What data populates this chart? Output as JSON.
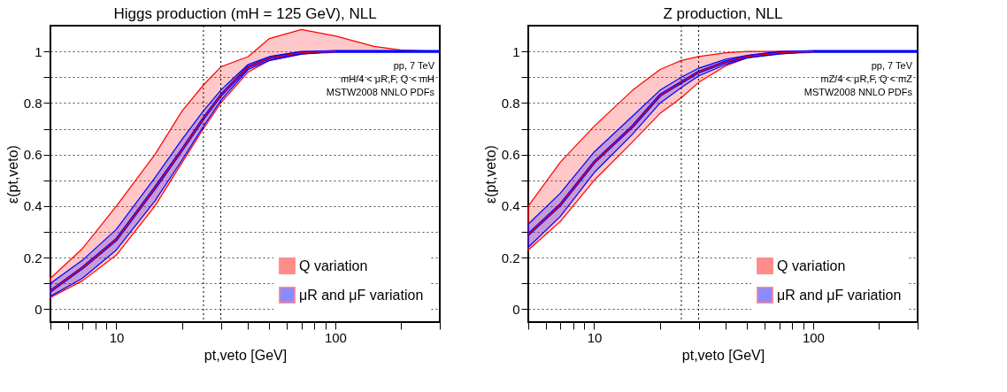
{
  "chart_data": [
    {
      "type": "line",
      "title": "Higgs production (mH = 125 GeV), NLL",
      "xlabel": "pt,veto [GeV]",
      "ylabel": "ε(pt,veto)",
      "annotations": [
        "pp, 7 TeV",
        "mH/4 < μR,F, Q < mH",
        "MSTW2008 NNLO PDFs"
      ],
      "x": [
        5,
        7,
        10,
        15,
        20,
        25,
        30,
        40,
        50,
        70,
        100,
        150,
        200,
        300
      ],
      "series": [
        {
          "name": "Q variation",
          "color": "#ff0000",
          "values": [
            0.07,
            0.16,
            0.27,
            0.47,
            0.62,
            0.74,
            0.83,
            0.94,
            0.975,
            0.995,
            1,
            null,
            null,
            null
          ],
          "lower": [
            0.045,
            0.11,
            0.21,
            0.4,
            0.57,
            0.7,
            0.8,
            0.92,
            0.965,
            0.99,
            1,
            1,
            1,
            1
          ],
          "upper": [
            0.12,
            0.235,
            0.4,
            0.6,
            0.77,
            0.87,
            0.94,
            0.98,
            1.05,
            1.085,
            1.06,
            1.02,
            1.005,
            1
          ]
        },
        {
          "name": "μR and μF variation",
          "color": "#0000ff",
          "values": [
            0.07,
            0.16,
            0.27,
            0.47,
            0.62,
            0.74,
            0.83,
            0.94,
            0.975,
            0.995,
            1,
            1,
            1,
            1
          ],
          "lower": [
            0.05,
            0.12,
            0.23,
            0.42,
            0.58,
            0.71,
            0.81,
            0.93,
            0.965,
            0.99,
            1,
            1,
            1,
            1
          ],
          "upper": [
            0.1,
            0.19,
            0.31,
            0.51,
            0.66,
            0.77,
            0.85,
            0.95,
            0.98,
            1,
            1,
            1,
            1,
            1
          ]
        }
      ],
      "xlim": [
        5,
        300
      ],
      "ylim": [
        -0.05,
        1.1
      ],
      "log": "x",
      "xticks": [
        {
          "value": 5,
          "label": null
        },
        {
          "value": 6,
          "label": null
        },
        {
          "value": 7,
          "label": null
        },
        {
          "value": 8,
          "label": null
        },
        {
          "value": 9,
          "label": null
        },
        10,
        {
          "value": 20,
          "label": null
        },
        {
          "value": 30,
          "label": null
        },
        {
          "value": 40,
          "label": null
        },
        {
          "value": 50,
          "label": null
        },
        {
          "value": 60,
          "label": null
        },
        {
          "value": 70,
          "label": null
        },
        {
          "value": 80,
          "label": null
        },
        {
          "value": 90,
          "label": null
        },
        100,
        {
          "value": 200,
          "label": null
        },
        {
          "value": 300,
          "label": null
        }
      ],
      "yticks": [
        0,
        {
          "value": 0.1,
          "label": null
        },
        0.2,
        {
          "value": 0.3,
          "label": null
        },
        0.4,
        {
          "value": 0.5,
          "label": null
        },
        0.6,
        {
          "value": 0.7,
          "label": null
        },
        0.8,
        {
          "value": 0.9,
          "label": null
        },
        1
      ],
      "ref_lines": [
        {
          "axis": "x",
          "value": 25,
          "color": "#000000",
          "line_style": "dotted"
        },
        {
          "axis": "x",
          "value": 30,
          "color": "#000000",
          "line_style": "dotted"
        }
      ],
      "grid": "y",
      "legend": "bottom right",
      "marker": "none",
      "line_style": "solid"
    },
    {
      "type": "line",
      "title": "Z production, NLL",
      "xlabel": "pt,veto [GeV]",
      "ylabel": "ε(pt,veto)",
      "annotations": [
        "pp, 7 TeV",
        "mZ/4 < μR,F, Q < mZ",
        "MSTW2008 NNLO PDFs"
      ],
      "x": [
        5,
        7,
        10,
        15,
        20,
        25,
        30,
        40,
        50,
        70,
        100,
        150,
        200,
        300
      ],
      "series": [
        {
          "name": "Q variation",
          "color": "#ff0000",
          "values": [
            0.29,
            0.405,
            0.57,
            0.71,
            0.83,
            0.88,
            0.92,
            0.96,
            0.98,
            0.995,
            1,
            null,
            null,
            null
          ],
          "lower": [
            0.23,
            0.34,
            0.5,
            0.65,
            0.76,
            0.82,
            0.88,
            0.945,
            0.975,
            0.995,
            1,
            1,
            1,
            1
          ],
          "upper": [
            0.4,
            0.57,
            0.71,
            0.85,
            0.93,
            0.965,
            0.98,
            0.995,
            1,
            1,
            1,
            1,
            1,
            1
          ]
        },
        {
          "name": "μR and μF variation",
          "color": "#0000ff",
          "values": [
            0.29,
            0.405,
            0.57,
            0.71,
            0.83,
            0.88,
            0.92,
            0.96,
            0.98,
            0.995,
            1,
            1,
            1,
            1
          ],
          "lower": [
            0.24,
            0.36,
            0.53,
            0.68,
            0.8,
            0.86,
            0.905,
            0.95,
            0.975,
            0.99,
            1,
            1,
            1,
            1
          ],
          "upper": [
            0.33,
            0.45,
            0.61,
            0.75,
            0.85,
            0.9,
            0.935,
            0.97,
            0.985,
            1,
            1,
            1,
            1,
            1
          ]
        }
      ],
      "xlim": [
        5,
        300
      ],
      "ylim": [
        -0.05,
        1.1
      ],
      "log": "x",
      "xticks": [
        {
          "value": 5,
          "label": null
        },
        {
          "value": 6,
          "label": null
        },
        {
          "value": 7,
          "label": null
        },
        {
          "value": 8,
          "label": null
        },
        {
          "value": 9,
          "label": null
        },
        10,
        {
          "value": 20,
          "label": null
        },
        {
          "value": 30,
          "label": null
        },
        {
          "value": 40,
          "label": null
        },
        {
          "value": 50,
          "label": null
        },
        {
          "value": 60,
          "label": null
        },
        {
          "value": 70,
          "label": null
        },
        {
          "value": 80,
          "label": null
        },
        {
          "value": 90,
          "label": null
        },
        100,
        {
          "value": 200,
          "label": null
        },
        {
          "value": 300,
          "label": null
        }
      ],
      "yticks": [
        0,
        {
          "value": 0.1,
          "label": null
        },
        0.2,
        {
          "value": 0.3,
          "label": null
        },
        0.4,
        {
          "value": 0.5,
          "label": null
        },
        0.6,
        {
          "value": 0.7,
          "label": null
        },
        0.8,
        {
          "value": 0.9,
          "label": null
        },
        1
      ],
      "ref_lines": [
        {
          "axis": "x",
          "value": 25,
          "color": "#000000",
          "line_style": "dotted"
        },
        {
          "axis": "x",
          "value": 30,
          "color": "#000000",
          "line_style": "dotted"
        }
      ],
      "grid": "y",
      "legend": "bottom right",
      "marker": "none",
      "line_style": "solid"
    }
  ]
}
